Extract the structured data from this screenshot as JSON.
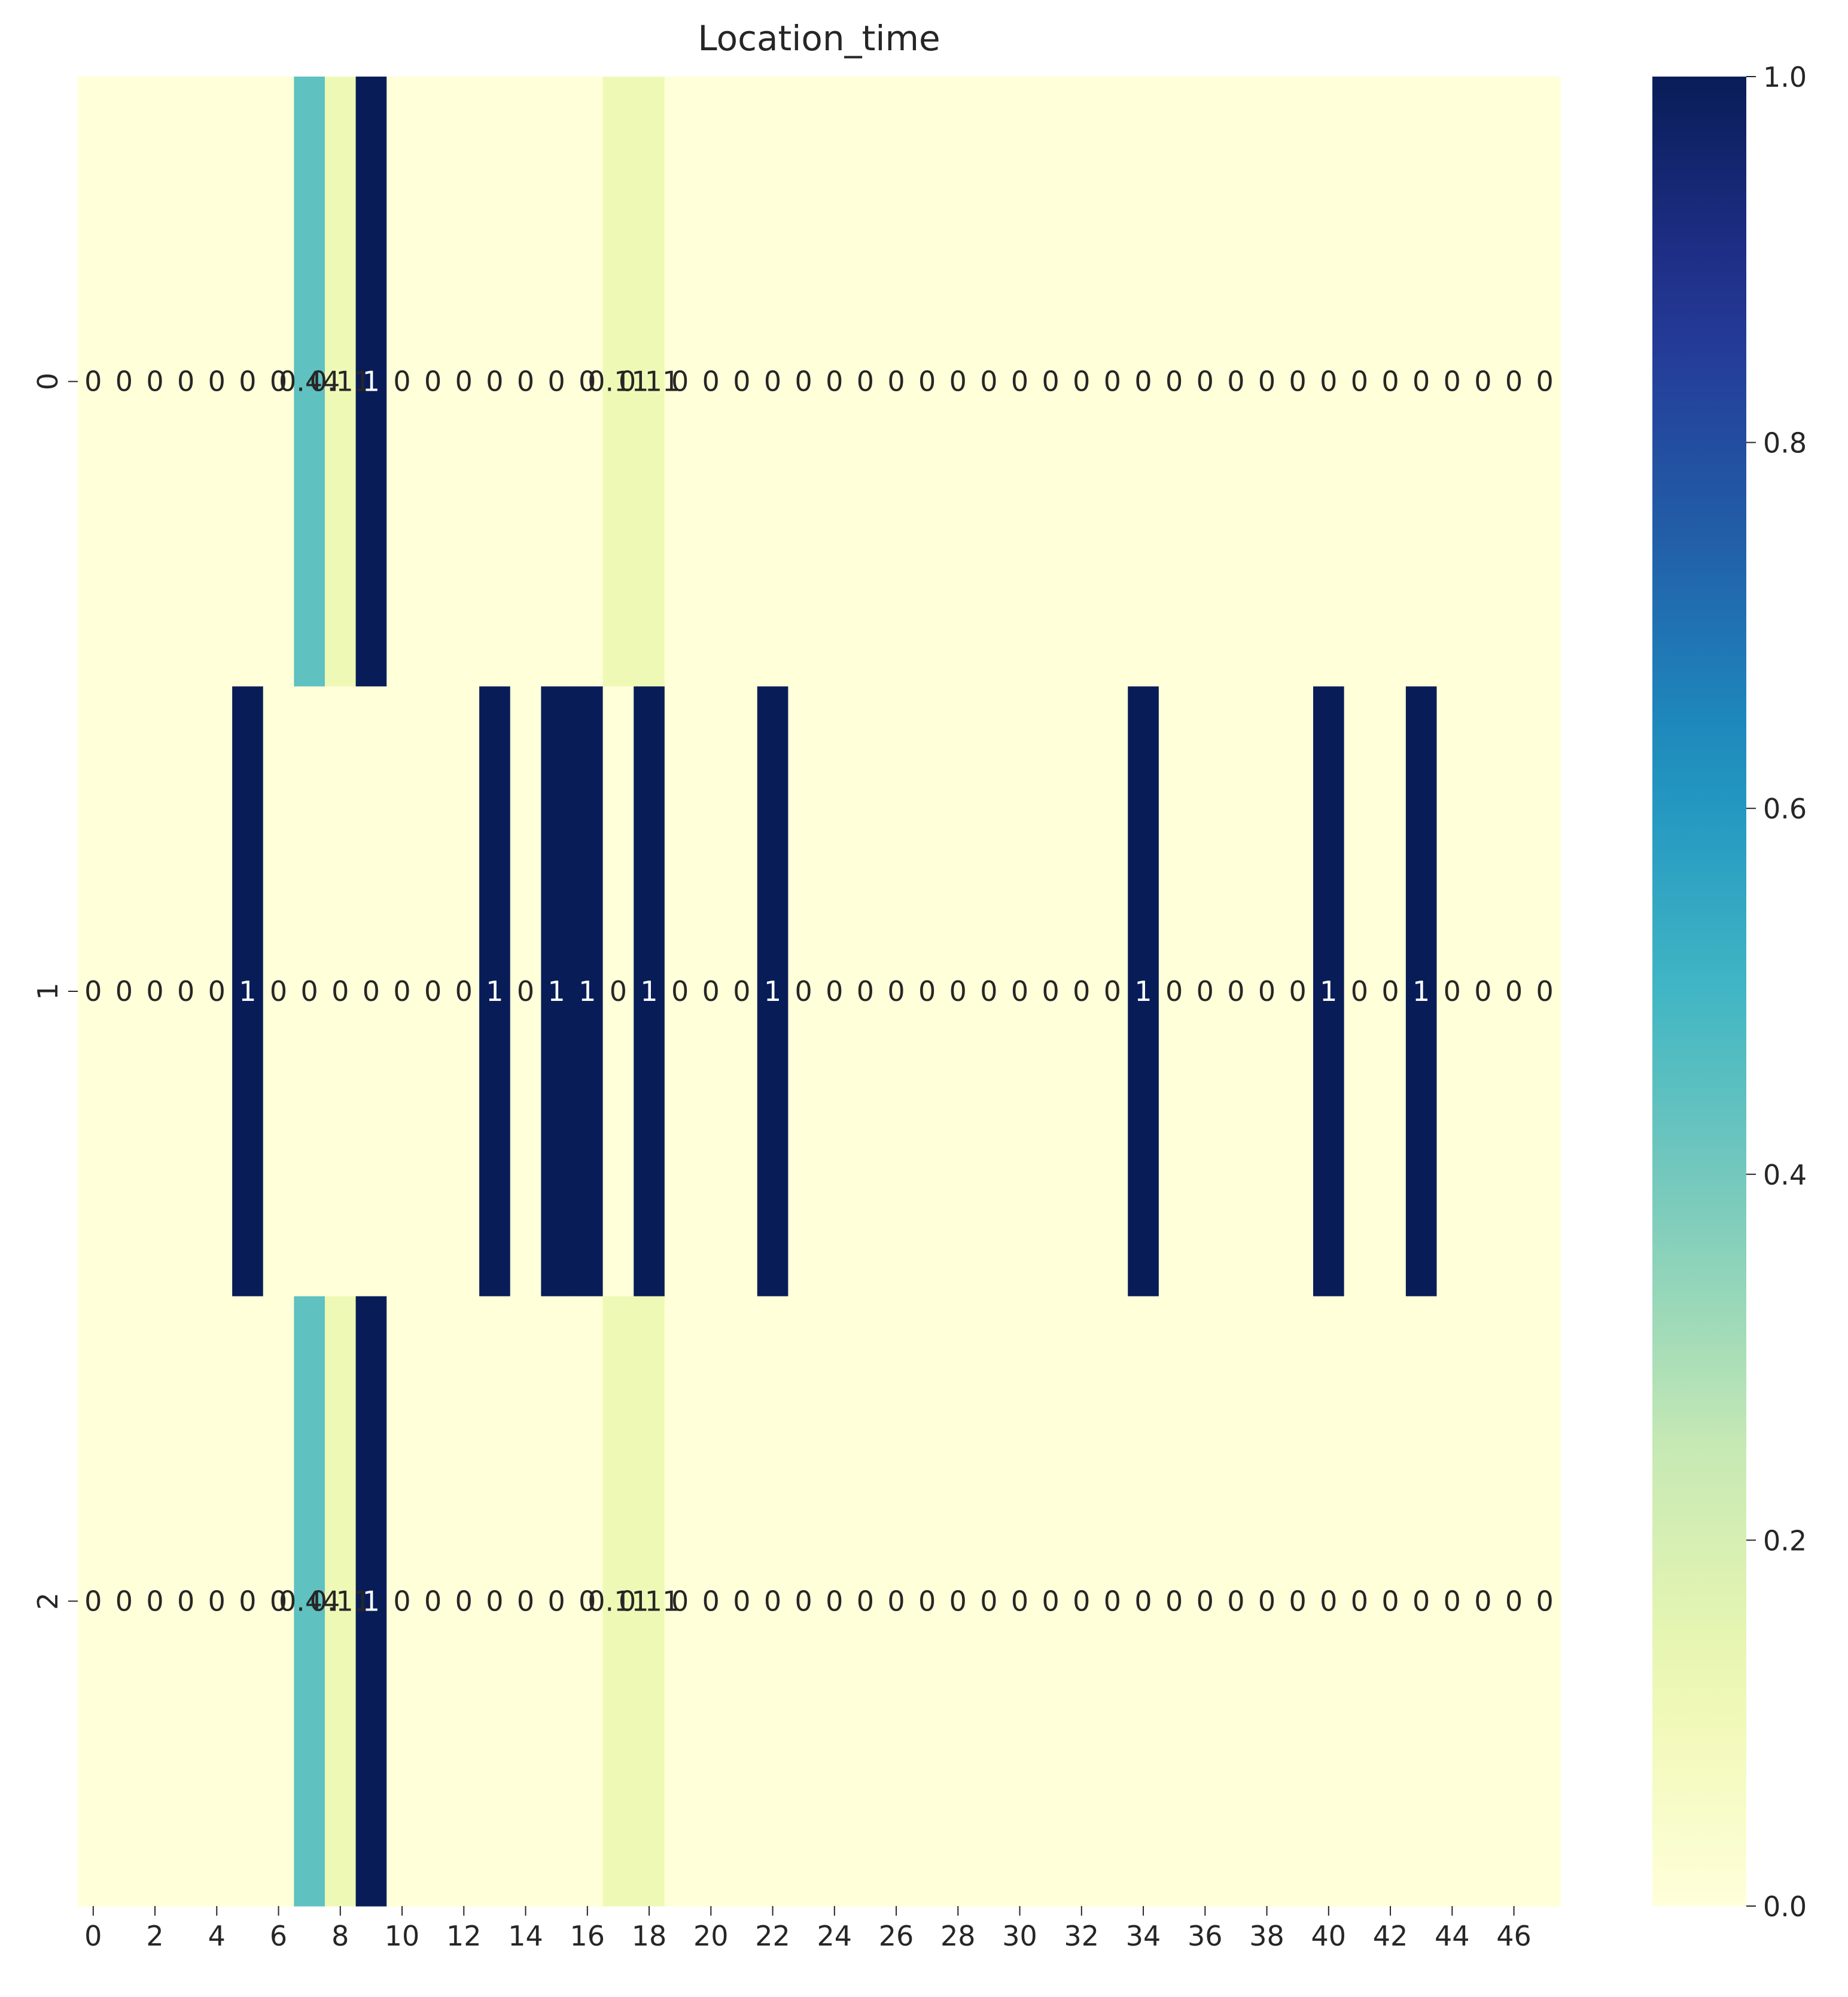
{
  "chart_data": {
    "type": "heatmap",
    "title": "Location_time",
    "xlabel": "",
    "ylabel": "",
    "x_tick_labels": [
      "0",
      "2",
      "4",
      "6",
      "8",
      "10",
      "12",
      "14",
      "16",
      "18",
      "20",
      "22",
      "24",
      "26",
      "28",
      "30",
      "32",
      "34",
      "36",
      "38",
      "40",
      "42",
      "44",
      "46"
    ],
    "y_tick_labels": [
      "0",
      "1",
      "2"
    ],
    "colormap": "YlGnBu",
    "vmin": 0,
    "vmax": 1,
    "colorbar_ticks": [
      "0.0",
      "0.2",
      "0.4",
      "0.6",
      "0.8",
      "1.0"
    ],
    "rows": [
      [
        0,
        0,
        0,
        0,
        0,
        0,
        0,
        0.44,
        0.11,
        1,
        0,
        0,
        0,
        0,
        0,
        0,
        0,
        0.11,
        0.11,
        0,
        0,
        0,
        0,
        0,
        0,
        0,
        0,
        0,
        0,
        0,
        0,
        0,
        0,
        0,
        0,
        0,
        0,
        0,
        0,
        0,
        0,
        0,
        0,
        0,
        0,
        0,
        0,
        0
      ],
      [
        0,
        0,
        0,
        0,
        0,
        1,
        0,
        0,
        0,
        0,
        0,
        0,
        0,
        1,
        0,
        1,
        1,
        0,
        1,
        0,
        0,
        0,
        1,
        0,
        0,
        0,
        0,
        0,
        0,
        0,
        0,
        0,
        0,
        0,
        1,
        0,
        0,
        0,
        0,
        0,
        1,
        0,
        0,
        1,
        0,
        0,
        0,
        0
      ],
      [
        0,
        0,
        0,
        0,
        0,
        0,
        0,
        0.44,
        0.11,
        1,
        0,
        0,
        0,
        0,
        0,
        0,
        0,
        0.11,
        0.11,
        0,
        0,
        0,
        0,
        0,
        0,
        0,
        0,
        0,
        0,
        0,
        0,
        0,
        0,
        0,
        0,
        0,
        0,
        0,
        0,
        0,
        0,
        0,
        0,
        0,
        0,
        0,
        0,
        0
      ]
    ],
    "cell_labels": [
      [
        "0",
        "0",
        "0",
        "0",
        "0",
        "0",
        "0",
        "0.44",
        "0.11",
        "1",
        "0",
        "0",
        "0",
        "0",
        "0",
        "0",
        "0",
        "0.11",
        "0.11",
        "0",
        "0",
        "0",
        "0",
        "0",
        "0",
        "0",
        "0",
        "0",
        "0",
        "0",
        "0",
        "0",
        "0",
        "0",
        "0",
        "0",
        "0",
        "0",
        "0",
        "0",
        "0",
        "0",
        "0",
        "0",
        "0",
        "0",
        "0",
        "0"
      ],
      [
        "0",
        "0",
        "0",
        "0",
        "0",
        "1",
        "0",
        "0",
        "0",
        "0",
        "0",
        "0",
        "0",
        "1",
        "0",
        "1",
        "1",
        "0",
        "1",
        "0",
        "0",
        "0",
        "1",
        "0",
        "0",
        "0",
        "0",
        "0",
        "0",
        "0",
        "0",
        "0",
        "0",
        "0",
        "1",
        "0",
        "0",
        "0",
        "0",
        "0",
        "1",
        "0",
        "0",
        "1",
        "0",
        "0",
        "0",
        "0"
      ],
      [
        "0",
        "0",
        "0",
        "0",
        "0",
        "0",
        "0",
        "0.44",
        "0.11",
        "1",
        "0",
        "0",
        "0",
        "0",
        "0",
        "0",
        "0",
        "0.11",
        "0.11",
        "0",
        "0",
        "0",
        "0",
        "0",
        "0",
        "0",
        "0",
        "0",
        "0",
        "0",
        "0",
        "0",
        "0",
        "0",
        "0",
        "0",
        "0",
        "0",
        "0",
        "0",
        "0",
        "0",
        "0",
        "0",
        "0",
        "0",
        "0",
        "0"
      ]
    ],
    "grid": false,
    "legend": "colorbar-right"
  }
}
